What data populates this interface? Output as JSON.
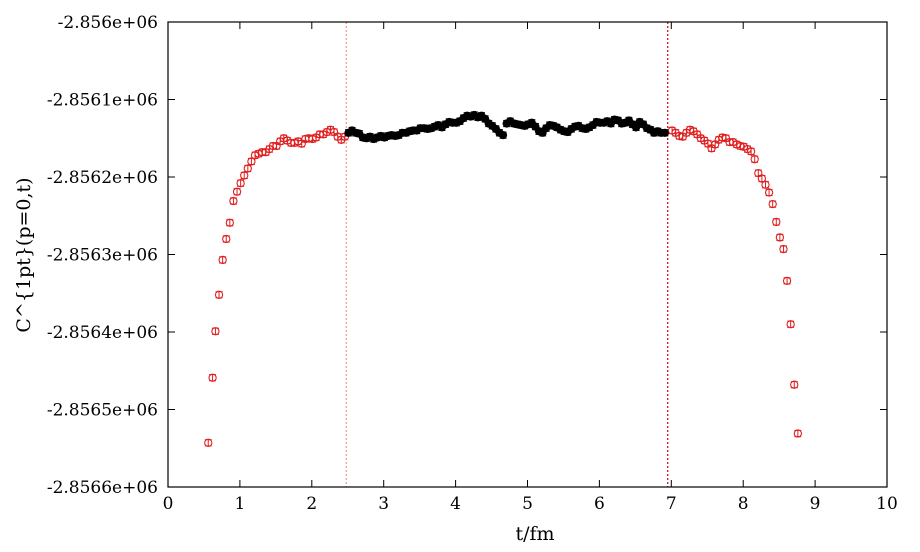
{
  "chart_data": {
    "type": "scatter",
    "title": "",
    "xlabel": "t/fm",
    "ylabel": "C^{1pt}(p=0,t)",
    "xlim": [
      0,
      10
    ],
    "ylim": [
      -2856600,
      -2856000
    ],
    "grid": false,
    "x_ticks": [
      0,
      1,
      2,
      3,
      4,
      5,
      6,
      7,
      8,
      9,
      10
    ],
    "x_tick_labels": [
      "0",
      "1",
      "2",
      "3",
      "4",
      "5",
      "6",
      "7",
      "8",
      "9",
      "10"
    ],
    "y_ticks": [
      -2856600,
      -2856500,
      -2856400,
      -2856300,
      -2856200,
      -2856100,
      -2856000
    ],
    "y_tick_labels": [
      "-2.8566e+06",
      "-2.8565e+06",
      "-2.8564e+06",
      "-2.8563e+06",
      "-2.8562e+06",
      "-2.8561e+06",
      "-2.856e+06"
    ],
    "vlines": [
      {
        "x": 2.48,
        "color": "#f0a090",
        "style": "dotted"
      },
      {
        "x": 6.95,
        "color": "#d01818",
        "style": "dotted"
      }
    ],
    "series": [
      {
        "marker": "open-circle",
        "color": "#e02020",
        "errorbar": 4,
        "points": [
          [
            0.56,
            -2856543
          ],
          [
            0.62,
            -2856459
          ],
          [
            0.66,
            -2856399
          ],
          [
            0.71,
            -2856352
          ],
          [
            0.76,
            -2856307
          ],
          [
            0.81,
            -2856280
          ],
          [
            0.86,
            -2856259
          ],
          [
            0.91,
            -2856231
          ],
          [
            0.96,
            -2856219
          ],
          [
            1.01,
            -2856208
          ],
          [
            1.06,
            -2856198
          ],
          [
            1.11,
            -2856189
          ],
          [
            1.16,
            -2856180
          ],
          [
            1.21,
            -2856172
          ],
          [
            1.26,
            -2856170
          ],
          [
            1.31,
            -2856168
          ],
          [
            1.36,
            -2856168
          ],
          [
            1.41,
            -2856164
          ],
          [
            1.46,
            -2856160
          ],
          [
            1.51,
            -2856160
          ],
          [
            1.56,
            -2856154
          ],
          [
            1.61,
            -2856150
          ],
          [
            1.66,
            -2856153
          ],
          [
            1.71,
            -2856156
          ],
          [
            1.76,
            -2856156
          ],
          [
            1.81,
            -2856154
          ],
          [
            1.86,
            -2856157
          ],
          [
            1.91,
            -2856151
          ],
          [
            1.96,
            -2856150
          ],
          [
            2.01,
            -2856151
          ],
          [
            2.06,
            -2856149
          ],
          [
            2.11,
            -2856145
          ],
          [
            2.16,
            -2856145
          ],
          [
            2.21,
            -2856142
          ],
          [
            2.26,
            -2856139
          ],
          [
            2.31,
            -2856142
          ],
          [
            2.36,
            -2856148
          ],
          [
            2.41,
            -2856152
          ],
          [
            2.46,
            -2856148
          ],
          [
            7.01,
            -2856140
          ],
          [
            7.06,
            -2856143
          ],
          [
            7.11,
            -2856147
          ],
          [
            7.16,
            -2856148
          ],
          [
            7.21,
            -2856143
          ],
          [
            7.26,
            -2856139
          ],
          [
            7.31,
            -2856141
          ],
          [
            7.36,
            -2856145
          ],
          [
            7.41,
            -2856150
          ],
          [
            7.46,
            -2856153
          ],
          [
            7.51,
            -2856157
          ],
          [
            7.56,
            -2856163
          ],
          [
            7.61,
            -2856158
          ],
          [
            7.66,
            -2856152
          ],
          [
            7.71,
            -2856149
          ],
          [
            7.76,
            -2856150
          ],
          [
            7.81,
            -2856155
          ],
          [
            7.86,
            -2856155
          ],
          [
            7.91,
            -2856158
          ],
          [
            7.96,
            -2856160
          ],
          [
            8.01,
            -2856161
          ],
          [
            8.06,
            -2856164
          ],
          [
            8.11,
            -2856167
          ],
          [
            8.16,
            -2856177
          ],
          [
            8.21,
            -2856195
          ],
          [
            8.26,
            -2856202
          ],
          [
            8.31,
            -2856210
          ],
          [
            8.36,
            -2856220
          ],
          [
            8.41,
            -2856235
          ],
          [
            8.46,
            -2856258
          ],
          [
            8.51,
            -2856278
          ],
          [
            8.56,
            -2856293
          ],
          [
            8.61,
            -2856334
          ],
          [
            8.66,
            -2856390
          ],
          [
            8.71,
            -2856468
          ],
          [
            8.76,
            -2856531
          ]
        ]
      },
      {
        "marker": "filled-circle",
        "color": "#000000",
        "errorbar": 4,
        "points": [
          [
            2.51,
            -2856143
          ],
          [
            2.56,
            -2856140
          ],
          [
            2.61,
            -2856143
          ],
          [
            2.66,
            -2856144
          ],
          [
            2.71,
            -2856149
          ],
          [
            2.76,
            -2856150
          ],
          [
            2.81,
            -2856148
          ],
          [
            2.86,
            -2856151
          ],
          [
            2.91,
            -2856149
          ],
          [
            2.96,
            -2856147
          ],
          [
            3.01,
            -2856149
          ],
          [
            3.06,
            -2856147
          ],
          [
            3.11,
            -2856146
          ],
          [
            3.16,
            -2856147
          ],
          [
            3.21,
            -2856146
          ],
          [
            3.26,
            -2856143
          ],
          [
            3.31,
            -2856143
          ],
          [
            3.36,
            -2856141
          ],
          [
            3.41,
            -2856140
          ],
          [
            3.46,
            -2856140
          ],
          [
            3.51,
            -2856137
          ],
          [
            3.56,
            -2856137
          ],
          [
            3.61,
            -2856138
          ],
          [
            3.66,
            -2856137
          ],
          [
            3.71,
            -2856135
          ],
          [
            3.76,
            -2856133
          ],
          [
            3.81,
            -2856136
          ],
          [
            3.86,
            -2856132
          ],
          [
            3.91,
            -2856129
          ],
          [
            3.96,
            -2856130
          ],
          [
            4.01,
            -2856130
          ],
          [
            4.06,
            -2856128
          ],
          [
            4.11,
            -2856124
          ],
          [
            4.16,
            -2856121
          ],
          [
            4.21,
            -2856122
          ],
          [
            4.26,
            -2856120
          ],
          [
            4.31,
            -2856123
          ],
          [
            4.36,
            -2856121
          ],
          [
            4.41,
            -2856125
          ],
          [
            4.46,
            -2856131
          ],
          [
            4.51,
            -2856134
          ],
          [
            4.56,
            -2856138
          ],
          [
            4.61,
            -2856143
          ],
          [
            4.66,
            -2856146
          ],
          [
            4.71,
            -2856131
          ],
          [
            4.76,
            -2856128
          ],
          [
            4.81,
            -2856131
          ],
          [
            4.86,
            -2856132
          ],
          [
            4.91,
            -2856133
          ],
          [
            4.96,
            -2856134
          ],
          [
            5.01,
            -2856132
          ],
          [
            5.06,
            -2856130
          ],
          [
            5.11,
            -2856135
          ],
          [
            5.16,
            -2856141
          ],
          [
            5.21,
            -2856143
          ],
          [
            5.26,
            -2856137
          ],
          [
            5.31,
            -2856133
          ],
          [
            5.36,
            -2856134
          ],
          [
            5.41,
            -2856136
          ],
          [
            5.46,
            -2856139
          ],
          [
            5.51,
            -2856141
          ],
          [
            5.56,
            -2856142
          ],
          [
            5.61,
            -2856138
          ],
          [
            5.66,
            -2856135
          ],
          [
            5.71,
            -2856134
          ],
          [
            5.76,
            -2856137
          ],
          [
            5.81,
            -2856138
          ],
          [
            5.86,
            -2856136
          ],
          [
            5.91,
            -2856133
          ],
          [
            5.96,
            -2856129
          ],
          [
            6.01,
            -2856130
          ],
          [
            6.06,
            -2856130
          ],
          [
            6.11,
            -2856128
          ],
          [
            6.16,
            -2856131
          ],
          [
            6.21,
            -2856126
          ],
          [
            6.26,
            -2856127
          ],
          [
            6.31,
            -2856131
          ],
          [
            6.36,
            -2856130
          ],
          [
            6.41,
            -2856127
          ],
          [
            6.46,
            -2856132
          ],
          [
            6.51,
            -2856136
          ],
          [
            6.56,
            -2856129
          ],
          [
            6.61,
            -2856132
          ],
          [
            6.66,
            -2856137
          ],
          [
            6.71,
            -2856139
          ],
          [
            6.76,
            -2856143
          ],
          [
            6.81,
            -2856141
          ],
          [
            6.86,
            -2856143
          ],
          [
            6.91,
            -2856143
          ]
        ]
      }
    ]
  }
}
